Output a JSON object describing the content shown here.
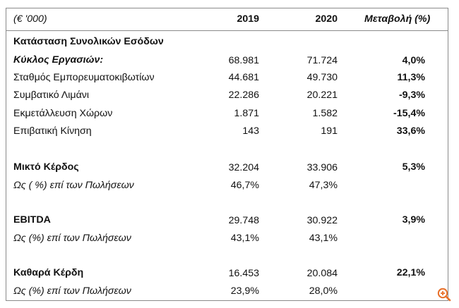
{
  "header": {
    "unit_label": "(€ '000)",
    "col_2019": "2019",
    "col_2020": "2020",
    "col_change": "Μεταβολή (%)"
  },
  "rows": [
    {
      "label": "Κατάσταση Συνολικών Εσόδων",
      "v2019": "",
      "v2020": "",
      "change": ""
    },
    {
      "label": "Κύκλος Εργασιών:",
      "v2019": "68.981",
      "v2020": "71.724",
      "change": "4,0%"
    },
    {
      "label": "Σταθμός Εμπορευματοκιβωτίων",
      "v2019": "44.681",
      "v2020": "49.730",
      "change": "11,3%"
    },
    {
      "label": "Συμβατικό Λιμάνι",
      "v2019": "22.286",
      "v2020": "20.221",
      "change": "-9,3%"
    },
    {
      "label": "Εκμετάλλευση Χώρων",
      "v2019": "1.871",
      "v2020": "1.582",
      "change": "-15,4%"
    },
    {
      "label": "Επιβατική Κίνηση",
      "v2019": "143",
      "v2020": "191",
      "change": "33,6%"
    },
    {
      "label": "Μικτό Κέρδος",
      "v2019": "32.204",
      "v2020": "33.906",
      "change": "5,3%"
    },
    {
      "label": "Ως ( %) επί των Πωλήσεων",
      "v2019": "46,7%",
      "v2020": "47,3%",
      "change": ""
    },
    {
      "label": "EBITDA",
      "v2019": "29.748",
      "v2020": "30.922",
      "change": "3,9%"
    },
    {
      "label": "Ως (%) επί των Πωλήσεων",
      "v2019": "43,1%",
      "v2020": "43,1%",
      "change": ""
    },
    {
      "label": "Καθαρά Κέρδη",
      "v2019": "16.453",
      "v2020": "20.084",
      "change": "22,1%"
    },
    {
      "label": "Ως (%) επί των Πωλήσεων",
      "v2019": "23,9%",
      "v2020": "28,0%",
      "change": ""
    }
  ],
  "zoom_icon": "zoom-in-icon",
  "accent_color": "#e8702a"
}
